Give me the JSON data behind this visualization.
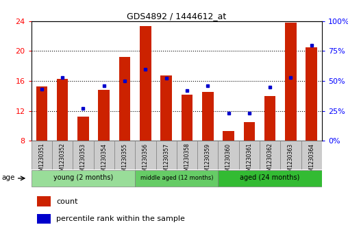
{
  "title": "GDS4892 / 1444612_at",
  "samples": [
    "GSM1230351",
    "GSM1230352",
    "GSM1230353",
    "GSM1230354",
    "GSM1230355",
    "GSM1230356",
    "GSM1230357",
    "GSM1230358",
    "GSM1230359",
    "GSM1230360",
    "GSM1230361",
    "GSM1230362",
    "GSM1230363",
    "GSM1230364"
  ],
  "counts": [
    15.3,
    16.3,
    11.2,
    14.8,
    19.2,
    23.3,
    16.7,
    14.2,
    14.5,
    9.3,
    10.5,
    14.0,
    23.8,
    20.5
  ],
  "percentiles": [
    43,
    53,
    27,
    46,
    50,
    60,
    52,
    42,
    46,
    23,
    23,
    45,
    53,
    80
  ],
  "ylim_left": [
    8,
    24
  ],
  "ylim_right": [
    0,
    100
  ],
  "yticks_left": [
    8,
    12,
    16,
    20,
    24
  ],
  "yticks_right": [
    0,
    25,
    50,
    75,
    100
  ],
  "bar_color": "#cc2200",
  "dot_color": "#0000cc",
  "bar_width": 0.55,
  "groups": [
    {
      "label": "young (2 months)",
      "start": 0,
      "end": 4,
      "color": "#99dd99"
    },
    {
      "label": "middle aged (12 months)",
      "start": 5,
      "end": 8,
      "color": "#66cc66"
    },
    {
      "label": "aged (24 months)",
      "start": 9,
      "end": 13,
      "color": "#33bb33"
    }
  ],
  "age_label": "age",
  "legend_count": "count",
  "legend_pct": "percentile rank within the sample",
  "bg_color": "#ffffff",
  "tick_cell_color": "#cccccc",
  "grid_yticks": [
    12,
    16,
    20
  ]
}
